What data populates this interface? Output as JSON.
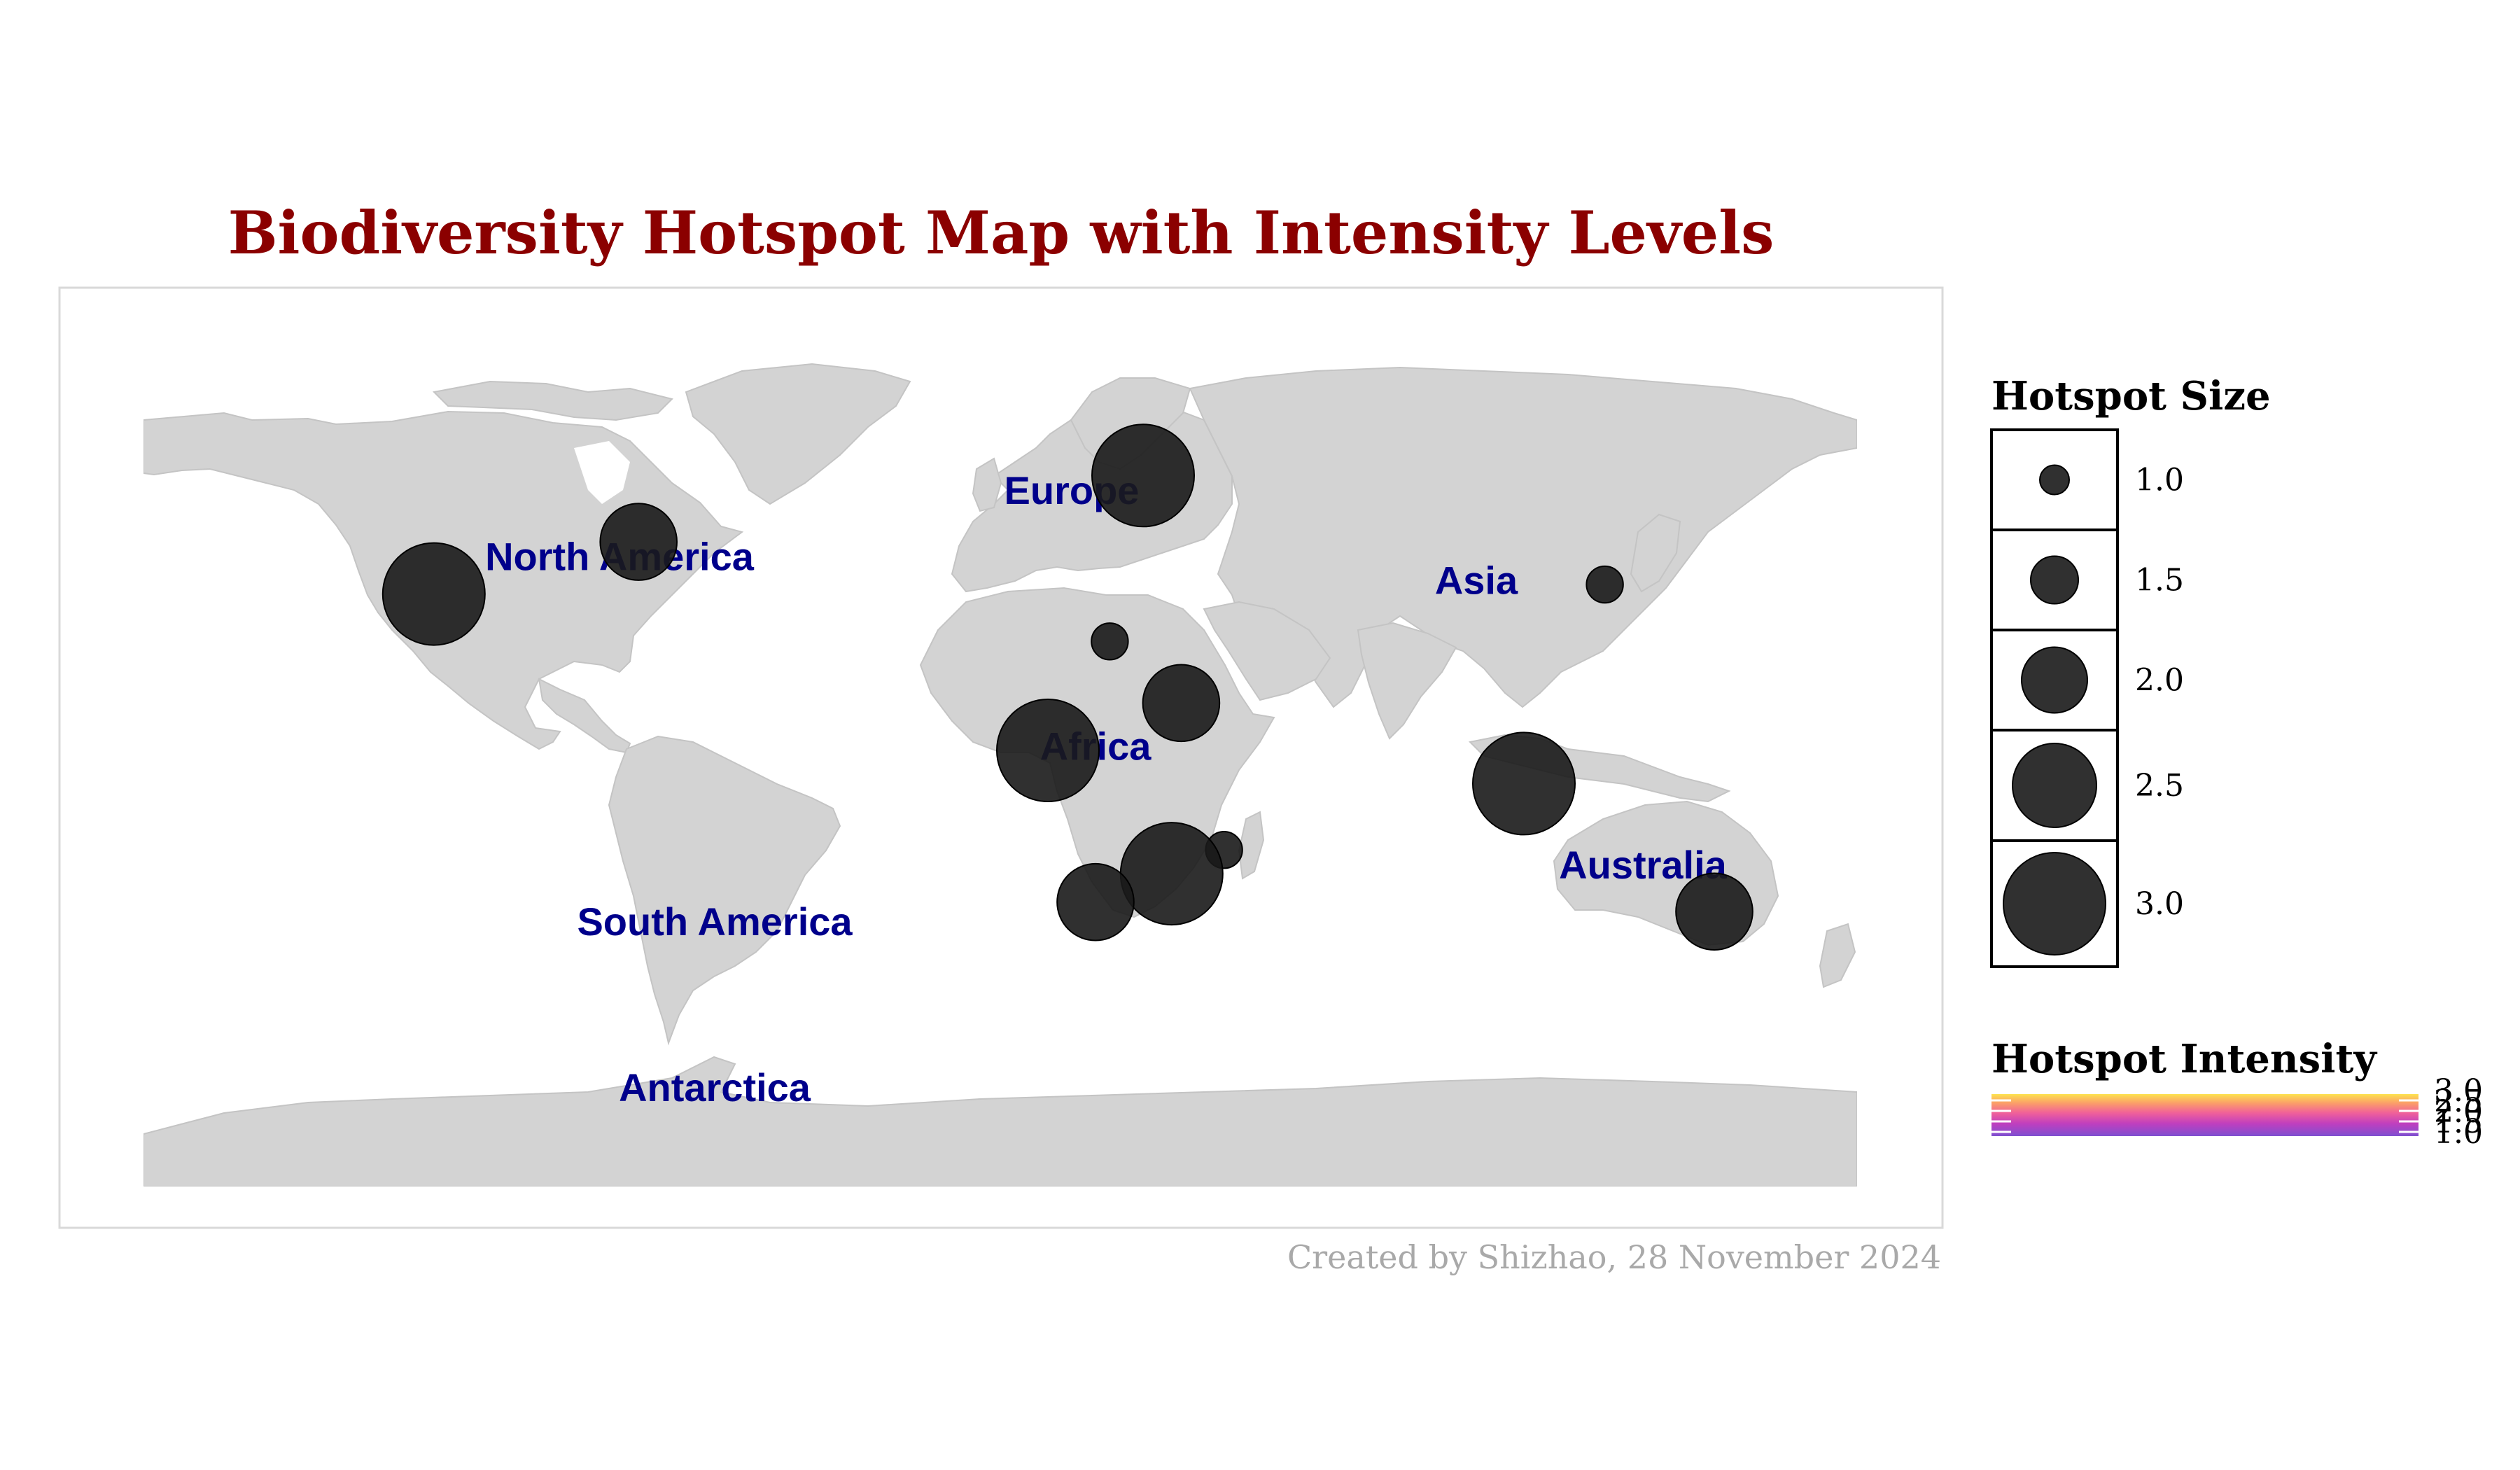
{
  "title": "Biodiversity Hotspot Map with Intensity Levels",
  "caption": "Created by Shizhao, 28 November 2024",
  "colors": {
    "title": "#8b0000",
    "region_label": "#00008b",
    "land": "#d3d3d3",
    "point": "#1a1a1a",
    "caption": "#a9a9a9",
    "intensity_gradient": [
      "#7e4fd0",
      "#c03fbe",
      "#f0609a",
      "#fb9d6a",
      "#fde34e"
    ]
  },
  "region_labels": [
    {
      "name": "North America",
      "lon": -80,
      "lat": 40
    },
    {
      "name": "Europe",
      "lon": 15,
      "lat": 54
    },
    {
      "name": "Asia",
      "lon": 100,
      "lat": 35
    },
    {
      "name": "Africa",
      "lon": 20,
      "lat": 0
    },
    {
      "name": "Australia",
      "lon": 135,
      "lat": -25
    },
    {
      "name": "South America",
      "lon": -60,
      "lat": -37
    },
    {
      "name": "Antarctica",
      "lon": -60,
      "lat": -72
    }
  ],
  "chart_data": {
    "type": "scatter",
    "projection": "equirectangular",
    "xlabel": "",
    "ylabel": "",
    "points": [
      {
        "lon": -119,
        "lat": 35,
        "size": 3.0
      },
      {
        "lon": -76,
        "lat": 46,
        "size": 2.3
      },
      {
        "lon": 30,
        "lat": 60,
        "size": 3.0
      },
      {
        "lon": 127,
        "lat": 37,
        "size": 1.2
      },
      {
        "lon": 23,
        "lat": 25,
        "size": 1.2
      },
      {
        "lon": 38,
        "lat": 12,
        "size": 2.3
      },
      {
        "lon": 10,
        "lat": 2,
        "size": 3.0
      },
      {
        "lon": 47,
        "lat": -19,
        "size": 1.2
      },
      {
        "lon": 110,
        "lat": -5,
        "size": 3.0
      },
      {
        "lon": 36,
        "lat": -24,
        "size": 3.0
      },
      {
        "lon": 20,
        "lat": -30,
        "size": 2.3
      },
      {
        "lon": 150,
        "lat": -32,
        "size": 2.3
      }
    ],
    "size_legend": {
      "title": "Hotspot Size",
      "values": [
        "1.0",
        "1.5",
        "2.0",
        "2.5",
        "3.0"
      ]
    },
    "color_legend": {
      "title": "Hotspot Intensity",
      "tick_labels": [
        "1.0",
        "1.5",
        "2.0",
        "2.5",
        "3.0"
      ]
    }
  }
}
